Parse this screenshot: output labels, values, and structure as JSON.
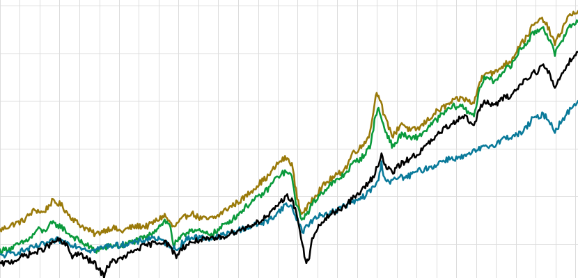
{
  "chart_data": {
    "type": "line",
    "title": "",
    "xlabel": "",
    "ylabel": "",
    "grid": true,
    "legend": "none",
    "xlim": [
      0,
      100
    ],
    "ylim": [
      0,
      100
    ],
    "x_gridlines": [
      0,
      3.43,
      6.87,
      10.3,
      13.73,
      17.17,
      20.6,
      24.03,
      27.47,
      30.9,
      34.34,
      37.77,
      41.2,
      44.64,
      48.07,
      51.5,
      54.94,
      58.37,
      61.8,
      65.24,
      68.67,
      72.1,
      75.54,
      78.97,
      82.41,
      85.84,
      89.27,
      92.71,
      96.14,
      99.57
    ],
    "y_gridlines": [
      12.5,
      30,
      47.5,
      65,
      82.5,
      100
    ],
    "series": [
      {
        "color": "#9a7a0a",
        "values": [
          [
            0,
            17.5
          ],
          [
            2,
            19.5
          ],
          [
            4,
            21
          ],
          [
            6,
            25
          ],
          [
            7.5,
            24
          ],
          [
            9,
            28
          ],
          [
            10.5,
            27
          ],
          [
            12,
            23
          ],
          [
            13.5,
            20
          ],
          [
            15,
            18
          ],
          [
            16.5,
            16
          ],
          [
            18,
            17.5
          ],
          [
            19.5,
            18.5
          ],
          [
            21,
            17
          ],
          [
            22.5,
            18.5
          ],
          [
            24,
            19
          ],
          [
            25.5,
            19
          ],
          [
            27,
            21
          ],
          [
            28.5,
            23
          ],
          [
            30,
            18.5
          ],
          [
            31.5,
            21.5
          ],
          [
            33,
            24
          ],
          [
            34.5,
            22
          ],
          [
            36,
            21.5
          ],
          [
            37.5,
            22.5
          ],
          [
            39,
            25
          ],
          [
            40.5,
            27
          ],
          [
            42,
            29
          ],
          [
            43.5,
            32
          ],
          [
            45,
            35
          ],
          [
            46.5,
            37.5
          ],
          [
            47.5,
            40.5
          ],
          [
            48.5,
            43
          ],
          [
            49.5,
            44
          ],
          [
            50.5,
            42
          ],
          [
            51.2,
            32
          ],
          [
            52,
            24
          ],
          [
            53,
            25
          ],
          [
            54,
            29
          ],
          [
            55.5,
            33
          ],
          [
            57,
            36
          ],
          [
            58.5,
            38
          ],
          [
            60,
            41
          ],
          [
            61,
            46
          ],
          [
            62.5,
            48
          ],
          [
            64,
            53
          ],
          [
            65,
            67
          ],
          [
            65.5,
            68
          ],
          [
            66.5,
            59
          ],
          [
            68,
            52
          ],
          [
            69.5,
            57
          ],
          [
            71,
            54
          ],
          [
            72.5,
            55
          ],
          [
            74,
            58
          ],
          [
            75.5,
            61
          ],
          [
            77,
            63
          ],
          [
            78.5,
            65
          ],
          [
            80,
            66
          ],
          [
            81,
            65
          ],
          [
            82,
            64
          ],
          [
            83,
            72
          ],
          [
            84,
            76
          ],
          [
            85.5,
            75
          ],
          [
            87,
            78
          ],
          [
            88.5,
            80
          ],
          [
            90,
            86
          ],
          [
            91,
            88
          ],
          [
            92,
            92
          ],
          [
            93,
            94
          ],
          [
            94,
            95
          ],
          [
            95,
            91
          ],
          [
            96,
            86
          ],
          [
            97,
            90
          ],
          [
            98,
            95
          ],
          [
            99,
            97
          ],
          [
            100,
            98
          ]
        ]
      },
      {
        "color": "#0a9a3c",
        "values": [
          [
            0,
            10
          ],
          [
            2,
            11
          ],
          [
            4,
            13
          ],
          [
            5.5,
            15
          ],
          [
            6.5,
            18
          ],
          [
            7.5,
            17
          ],
          [
            9,
            20
          ],
          [
            10.5,
            19
          ],
          [
            12,
            16
          ],
          [
            13.5,
            14
          ],
          [
            15,
            12
          ],
          [
            16.5,
            10
          ],
          [
            18,
            11
          ],
          [
            19.5,
            12
          ],
          [
            21,
            11.5
          ],
          [
            22.5,
            13
          ],
          [
            24,
            14
          ],
          [
            25.5,
            15
          ],
          [
            27,
            18
          ],
          [
            28.5,
            21
          ],
          [
            29.5,
            19
          ],
          [
            30,
            12
          ],
          [
            31.5,
            15
          ],
          [
            33,
            18
          ],
          [
            34.5,
            17
          ],
          [
            36,
            16
          ],
          [
            37.5,
            17
          ],
          [
            39,
            20
          ],
          [
            40.5,
            22
          ],
          [
            42,
            25
          ],
          [
            43.5,
            28
          ],
          [
            45,
            30
          ],
          [
            46.5,
            33
          ],
          [
            47.5,
            36
          ],
          [
            48.5,
            38
          ],
          [
            49.5,
            39
          ],
          [
            50.5,
            37
          ],
          [
            51.2,
            28
          ],
          [
            52,
            22
          ],
          [
            53,
            23
          ],
          [
            54,
            27
          ],
          [
            55.5,
            31
          ],
          [
            57,
            34
          ],
          [
            58.5,
            36
          ],
          [
            60,
            39
          ],
          [
            61,
            42
          ],
          [
            62.5,
            44
          ],
          [
            64,
            48
          ],
          [
            65,
            60
          ],
          [
            65.5,
            62
          ],
          [
            66.5,
            55
          ],
          [
            68,
            48
          ],
          [
            69.5,
            53
          ],
          [
            71,
            51
          ],
          [
            72.5,
            52
          ],
          [
            74,
            55
          ],
          [
            75.5,
            58
          ],
          [
            77,
            61
          ],
          [
            78.5,
            63
          ],
          [
            80,
            63
          ],
          [
            81,
            61
          ],
          [
            82,
            60
          ],
          [
            83,
            69
          ],
          [
            84,
            74
          ],
          [
            85.5,
            72
          ],
          [
            87,
            76
          ],
          [
            88.5,
            78
          ],
          [
            90,
            84
          ],
          [
            91,
            86
          ],
          [
            92,
            89
          ],
          [
            93,
            91
          ],
          [
            94,
            92
          ],
          [
            95,
            88
          ],
          [
            96,
            82
          ],
          [
            97,
            86
          ],
          [
            98,
            91
          ],
          [
            99,
            93
          ],
          [
            100,
            94
          ]
        ]
      },
      {
        "color": "#0a7a9a",
        "values": [
          [
            0,
            8
          ],
          [
            2,
            9
          ],
          [
            4,
            10
          ],
          [
            5.5,
            11
          ],
          [
            7,
            12
          ],
          [
            8.5,
            13
          ],
          [
            10,
            14
          ],
          [
            11.5,
            13
          ],
          [
            13,
            12
          ],
          [
            14.5,
            11
          ],
          [
            16,
            10
          ],
          [
            17.5,
            11
          ],
          [
            19,
            12
          ],
          [
            20.5,
            12
          ],
          [
            22,
            12.5
          ],
          [
            23.5,
            13
          ],
          [
            25,
            14
          ],
          [
            26.5,
            15
          ],
          [
            28,
            13.5
          ],
          [
            29.5,
            12
          ],
          [
            30.5,
            10
          ],
          [
            31.5,
            13
          ],
          [
            33,
            15
          ],
          [
            34.5,
            15
          ],
          [
            36,
            14.5
          ],
          [
            37.5,
            15
          ],
          [
            39,
            16
          ],
          [
            40.5,
            17
          ],
          [
            42,
            18
          ],
          [
            43.5,
            19
          ],
          [
            45,
            20
          ],
          [
            46.5,
            21
          ],
          [
            47.5,
            23
          ],
          [
            48.5,
            25
          ],
          [
            49.5,
            27
          ],
          [
            50.5,
            26
          ],
          [
            51.5,
            21
          ],
          [
            52.5,
            17
          ],
          [
            53,
            19
          ],
          [
            54,
            21
          ],
          [
            55.5,
            23
          ],
          [
            57,
            24
          ],
          [
            58.5,
            25
          ],
          [
            60,
            27
          ],
          [
            61.5,
            28
          ],
          [
            63,
            30
          ],
          [
            64.5,
            33
          ],
          [
            65.5,
            36
          ],
          [
            66,
            42
          ],
          [
            66.5,
            37
          ],
          [
            67.5,
            35
          ],
          [
            69,
            37
          ],
          [
            70.5,
            37
          ],
          [
            72,
            39
          ],
          [
            73.5,
            40
          ],
          [
            75,
            41
          ],
          [
            76.5,
            43
          ],
          [
            78,
            44
          ],
          [
            79.5,
            44
          ],
          [
            81,
            45
          ],
          [
            82.5,
            47
          ],
          [
            84,
            48
          ],
          [
            85.5,
            49
          ],
          [
            87,
            51
          ],
          [
            88.5,
            52
          ],
          [
            90,
            53
          ],
          [
            91,
            55
          ],
          [
            92,
            58
          ],
          [
            93,
            59
          ],
          [
            94,
            60
          ],
          [
            95,
            58
          ],
          [
            96,
            54
          ],
          [
            97,
            57
          ],
          [
            98,
            60
          ],
          [
            99,
            63
          ],
          [
            100,
            65
          ]
        ]
      },
      {
        "color": "#000000",
        "values": [
          [
            0,
            5
          ],
          [
            2,
            6
          ],
          [
            4,
            8
          ],
          [
            5.5,
            9
          ],
          [
            7,
            10
          ],
          [
            8.5,
            12
          ],
          [
            10,
            14
          ],
          [
            11.5,
            12
          ],
          [
            12.5,
            8
          ],
          [
            13.5,
            9
          ],
          [
            15,
            7
          ],
          [
            16.5,
            5
          ],
          [
            17.5,
            2
          ],
          [
            18,
            1
          ],
          [
            18.5,
            4
          ],
          [
            19.5,
            6
          ],
          [
            21,
            7
          ],
          [
            22.5,
            9
          ],
          [
            24,
            11
          ],
          [
            25.5,
            12
          ],
          [
            27,
            13
          ],
          [
            28.5,
            13.5
          ],
          [
            29.5,
            11
          ],
          [
            30.5,
            8
          ],
          [
            31.5,
            11
          ],
          [
            33,
            13
          ],
          [
            34.5,
            14
          ],
          [
            36,
            14
          ],
          [
            37.5,
            14.5
          ],
          [
            39,
            15.5
          ],
          [
            40.5,
            17
          ],
          [
            42,
            18
          ],
          [
            43.5,
            19.5
          ],
          [
            45,
            21
          ],
          [
            46.5,
            23
          ],
          [
            47.5,
            25
          ],
          [
            48.5,
            28
          ],
          [
            49.5,
            30
          ],
          [
            50.5,
            29
          ],
          [
            51.5,
            22
          ],
          [
            52.5,
            10
          ],
          [
            53,
            5
          ],
          [
            53.5,
            8
          ],
          [
            54,
            14
          ],
          [
            55.5,
            20
          ],
          [
            57,
            23
          ],
          [
            58.5,
            25
          ],
          [
            60,
            27
          ],
          [
            61.5,
            30
          ],
          [
            63,
            33
          ],
          [
            64.5,
            37
          ],
          [
            65.5,
            42
          ],
          [
            66,
            46
          ],
          [
            66.5,
            41
          ],
          [
            68,
            39
          ],
          [
            69.5,
            42
          ],
          [
            71,
            44
          ],
          [
            72.5,
            46
          ],
          [
            74,
            49
          ],
          [
            75.5,
            52
          ],
          [
            77,
            55
          ],
          [
            78.5,
            57
          ],
          [
            80,
            60
          ],
          [
            81,
            58
          ],
          [
            82,
            56
          ],
          [
            83,
            62
          ],
          [
            84,
            65
          ],
          [
            85.5,
            63
          ],
          [
            87,
            66
          ],
          [
            88.5,
            67
          ],
          [
            90,
            71
          ],
          [
            91,
            73
          ],
          [
            92,
            75
          ],
          [
            93,
            76
          ],
          [
            94,
            78
          ],
          [
            95,
            75
          ],
          [
            96,
            70
          ],
          [
            97,
            74
          ],
          [
            98,
            78
          ],
          [
            99,
            81
          ],
          [
            100,
            83
          ]
        ]
      }
    ]
  }
}
